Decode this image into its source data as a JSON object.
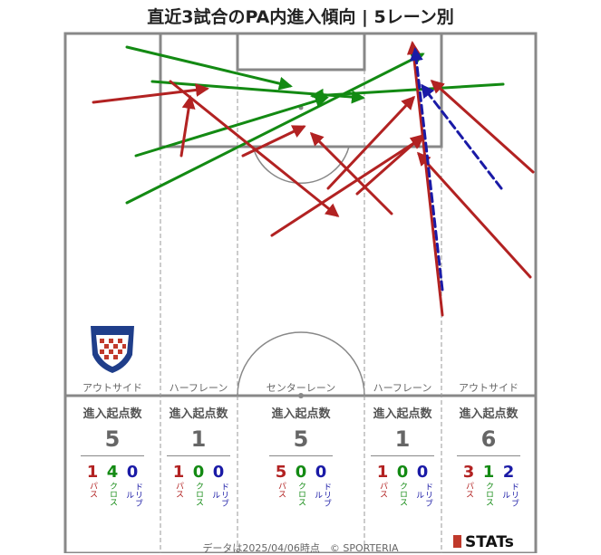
{
  "title": "直近3試合のPA内進入傾向 | 5レーン別",
  "lanes": [
    {
      "label": "アウトサイド",
      "header": "進入起点数",
      "total": "5",
      "pass": "1",
      "cross": "4",
      "dribble": "0"
    },
    {
      "label": "ハーフレーン",
      "header": "進入起点数",
      "total": "1",
      "pass": "1",
      "cross": "0",
      "dribble": "0"
    },
    {
      "label": "センターレーン",
      "header": "進入起点数",
      "total": "5",
      "pass": "5",
      "cross": "0",
      "dribble": "0"
    },
    {
      "label": "ハーフレーン",
      "header": "進入起点数",
      "total": "1",
      "pass": "1",
      "cross": "0",
      "dribble": "0"
    },
    {
      "label": "アウトサイド",
      "header": "進入起点数",
      "total": "6",
      "pass": "3",
      "cross": "1",
      "dribble": "2"
    }
  ],
  "kinds": {
    "pass": "パス",
    "cross": "クロス",
    "dribble": "ドリブル"
  },
  "colors": {
    "pass": "#b22222",
    "cross": "#138a13",
    "dribble": "#1a1aa6"
  },
  "footer": "データは2025/04/06時点　© SPORTERIA",
  "brand": "STATs",
  "chart_data": {
    "type": "scatter",
    "arrows": [
      {
        "kind": "cross",
        "from": [
          140,
          52
        ],
        "to": [
          320,
          95
        ]
      },
      {
        "kind": "cross",
        "from": [
          168,
          90
        ],
        "to": [
          400,
          108
        ]
      },
      {
        "kind": "cross",
        "from": [
          150,
          172
        ],
        "to": [
          360,
          108
        ]
      },
      {
        "kind": "cross",
        "from": [
          140,
          224
        ],
        "to": [
          466,
          60
        ]
      },
      {
        "kind": "cross",
        "from": [
          555,
          93
        ],
        "to": [
          345,
          106
        ]
      },
      {
        "kind": "pass",
        "from": [
          103,
          113
        ],
        "to": [
          228,
          98
        ]
      },
      {
        "kind": "pass",
        "from": [
          200,
          172
        ],
        "to": [
          210,
          108
        ]
      },
      {
        "kind": "pass",
        "from": [
          188,
          90
        ],
        "to": [
          372,
          238
        ]
      },
      {
        "kind": "pass",
        "from": [
          268,
          172
        ],
        "to": [
          335,
          140
        ]
      },
      {
        "kind": "pass",
        "from": [
          432,
          236
        ],
        "to": [
          344,
          148
        ]
      },
      {
        "kind": "pass",
        "from": [
          300,
          260
        ],
        "to": [
          466,
          152
        ]
      },
      {
        "kind": "pass",
        "from": [
          362,
          208
        ],
        "to": [
          456,
          108
        ]
      },
      {
        "kind": "pass",
        "from": [
          394,
          214
        ],
        "to": [
          466,
          150
        ]
      },
      {
        "kind": "pass",
        "from": [
          488,
          348
        ],
        "to": [
          455,
          48
        ]
      },
      {
        "kind": "pass",
        "from": [
          588,
          190
        ],
        "to": [
          477,
          90
        ]
      },
      {
        "kind": "pass",
        "from": [
          585,
          306
        ],
        "to": [
          462,
          170
        ]
      },
      {
        "kind": "dribble",
        "from": [
          488,
          320
        ],
        "to": [
          458,
          55
        ]
      },
      {
        "kind": "dribble",
        "from": [
          553,
          208
        ],
        "to": [
          466,
          95
        ]
      }
    ]
  }
}
